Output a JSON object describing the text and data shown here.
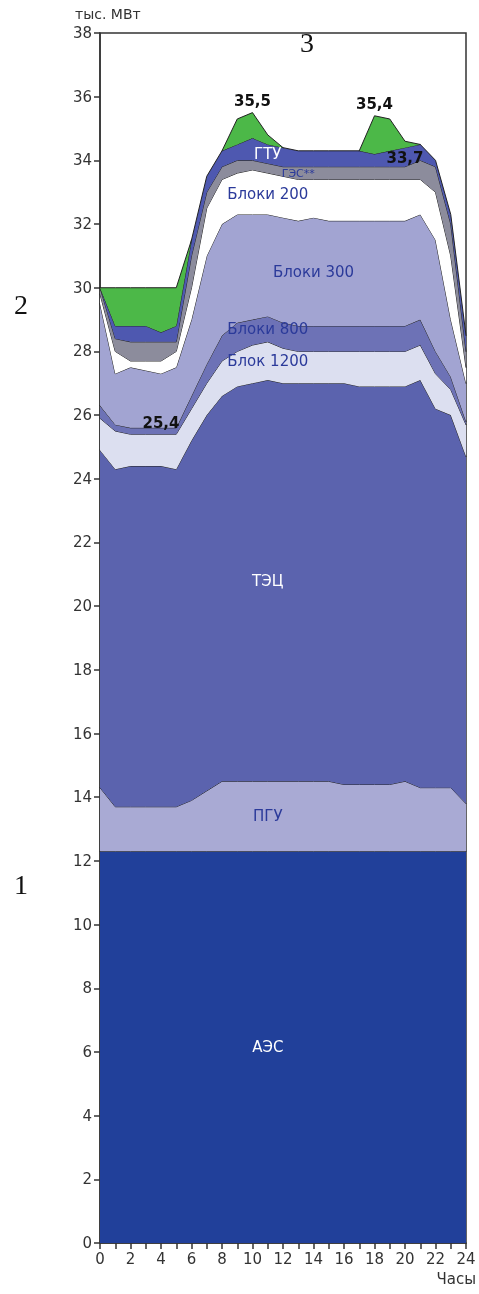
{
  "chart_data": {
    "type": "area",
    "stacked": true,
    "xlabel": "Часы",
    "ylabel": "тыс. МВт",
    "x": [
      0,
      1,
      2,
      3,
      4,
      5,
      6,
      7,
      8,
      9,
      10,
      11,
      12,
      13,
      14,
      15,
      16,
      17,
      18,
      19,
      20,
      21,
      22,
      23,
      24
    ],
    "xlim": [
      0,
      24
    ],
    "xticks": [
      0,
      {
        "value": 1,
        "label": null
      },
      2,
      {
        "value": 3,
        "label": null
      },
      4,
      {
        "value": 5,
        "label": null
      },
      6,
      {
        "value": 7,
        "label": null
      },
      8,
      {
        "value": 9,
        "label": null
      },
      10,
      {
        "value": 11,
        "label": null
      },
      12,
      {
        "value": 13,
        "label": null
      },
      14,
      {
        "value": 15,
        "label": null
      },
      16,
      {
        "value": 17,
        "label": null
      },
      18,
      {
        "value": 19,
        "label": null
      },
      20,
      {
        "value": 21,
        "label": null
      },
      22,
      {
        "value": 23,
        "label": null
      },
      24
    ],
    "ylim": [
      0,
      38
    ],
    "yticks": [
      0,
      2,
      4,
      6,
      8,
      10,
      12,
      14,
      16,
      18,
      20,
      22,
      24,
      26,
      28,
      30,
      32,
      34,
      36,
      38
    ],
    "grid": false,
    "legend": false,
    "series": [
      {
        "name": "АЭС",
        "color": "#21409a",
        "values": [
          12.3,
          12.3,
          12.3,
          12.3,
          12.3,
          12.3,
          12.3,
          12.3,
          12.3,
          12.3,
          12.3,
          12.3,
          12.3,
          12.3,
          12.3,
          12.3,
          12.3,
          12.3,
          12.3,
          12.3,
          12.3,
          12.3,
          12.3,
          12.3,
          12.3
        ]
      },
      {
        "name": "ПГУ",
        "color": "#a9aad4",
        "values": [
          2.0,
          1.4,
          1.4,
          1.4,
          1.4,
          1.4,
          1.6,
          1.9,
          2.2,
          2.2,
          2.2,
          2.2,
          2.2,
          2.2,
          2.2,
          2.2,
          2.1,
          2.1,
          2.1,
          2.1,
          2.2,
          2.0,
          2.0,
          2.0,
          1.5
        ]
      },
      {
        "name": "ТЭЦ",
        "color": "#5b63ae",
        "values": [
          10.6,
          10.6,
          10.7,
          10.7,
          10.7,
          10.6,
          11.3,
          11.8,
          12.1,
          12.4,
          12.5,
          12.6,
          12.5,
          12.5,
          12.5,
          12.5,
          12.6,
          12.5,
          12.5,
          12.5,
          12.4,
          12.8,
          11.9,
          11.7,
          10.9
        ]
      },
      {
        "name": "Блок 1200",
        "color": "#dcdff0",
        "values": [
          1.0,
          1.2,
          1.0,
          1.0,
          1.0,
          1.1,
          1.0,
          1.0,
          1.1,
          1.1,
          1.2,
          1.2,
          1.1,
          1.0,
          1.0,
          1.0,
          1.0,
          1.1,
          1.1,
          1.1,
          1.1,
          1.1,
          1.1,
          0.8,
          1.0
        ]
      },
      {
        "name": "Блоки 800",
        "color": "#6d72b6",
        "values": [
          0.4,
          0.2,
          0.2,
          0.2,
          0.2,
          0.2,
          0.4,
          0.6,
          0.8,
          0.9,
          0.8,
          0.8,
          0.8,
          0.8,
          0.8,
          0.8,
          0.8,
          0.8,
          0.8,
          0.8,
          0.8,
          0.8,
          0.7,
          0.4,
          0.1
        ]
      },
      {
        "name": "Блоки 300",
        "color": "#a2a4d2",
        "values": [
          3.2,
          1.6,
          1.9,
          1.8,
          1.7,
          1.9,
          2.4,
          3.4,
          3.5,
          3.4,
          3.3,
          3.2,
          3.3,
          3.3,
          3.4,
          3.3,
          3.3,
          3.3,
          3.3,
          3.3,
          3.3,
          3.3,
          3.5,
          1.8,
          1.2
        ]
      },
      {
        "name": "Блоки 200",
        "color": "#ffffff",
        "values": [
          0.3,
          0.7,
          0.2,
          0.3,
          0.4,
          0.5,
          1.0,
          1.5,
          1.4,
          1.3,
          1.4,
          1.3,
          1.3,
          1.3,
          1.2,
          1.3,
          1.3,
          1.3,
          1.3,
          1.3,
          1.3,
          1.1,
          1.5,
          2.0,
          0.5
        ]
      },
      {
        "name": "ГЭС**",
        "color": "#8c8c9c",
        "values": [
          0.2,
          0.4,
          0.6,
          0.6,
          0.6,
          0.3,
          1.0,
          0.5,
          0.4,
          0.4,
          0.3,
          0.3,
          0.3,
          0.4,
          0.4,
          0.4,
          0.4,
          0.4,
          0.4,
          0.4,
          0.4,
          0.6,
          0.8,
          1.0,
          0.5
        ]
      },
      {
        "name": "ГТУ",
        "color": "#4e58b0",
        "values": [
          0.0,
          0.4,
          0.5,
          0.5,
          0.3,
          0.5,
          0.5,
          0.5,
          0.5,
          0.5,
          0.7,
          0.6,
          0.6,
          0.5,
          0.5,
          0.5,
          0.5,
          0.5,
          0.4,
          0.5,
          0.6,
          0.5,
          0.2,
          0.3,
          0.5
        ]
      },
      {
        "color": "#4cb848",
        "values": [
          0,
          1.2,
          1.2,
          1.2,
          1.4,
          1.2,
          0,
          null,
          0,
          0.8,
          0.8,
          0.3,
          0,
          null,
          null,
          null,
          null,
          0,
          1.2,
          1.0,
          0.2,
          0,
          null,
          null,
          null
        ]
      }
    ],
    "annotations": [
      {
        "text": "35,5",
        "x": 10,
        "y": 35.5
      },
      {
        "text": "35,4",
        "x": 18,
        "y": 35.4
      },
      {
        "text": "33,7",
        "x": 20,
        "y": 33.7
      },
      {
        "text": "25,4",
        "x": 4,
        "y": 25.4
      },
      "3",
      "2",
      "1"
    ]
  }
}
